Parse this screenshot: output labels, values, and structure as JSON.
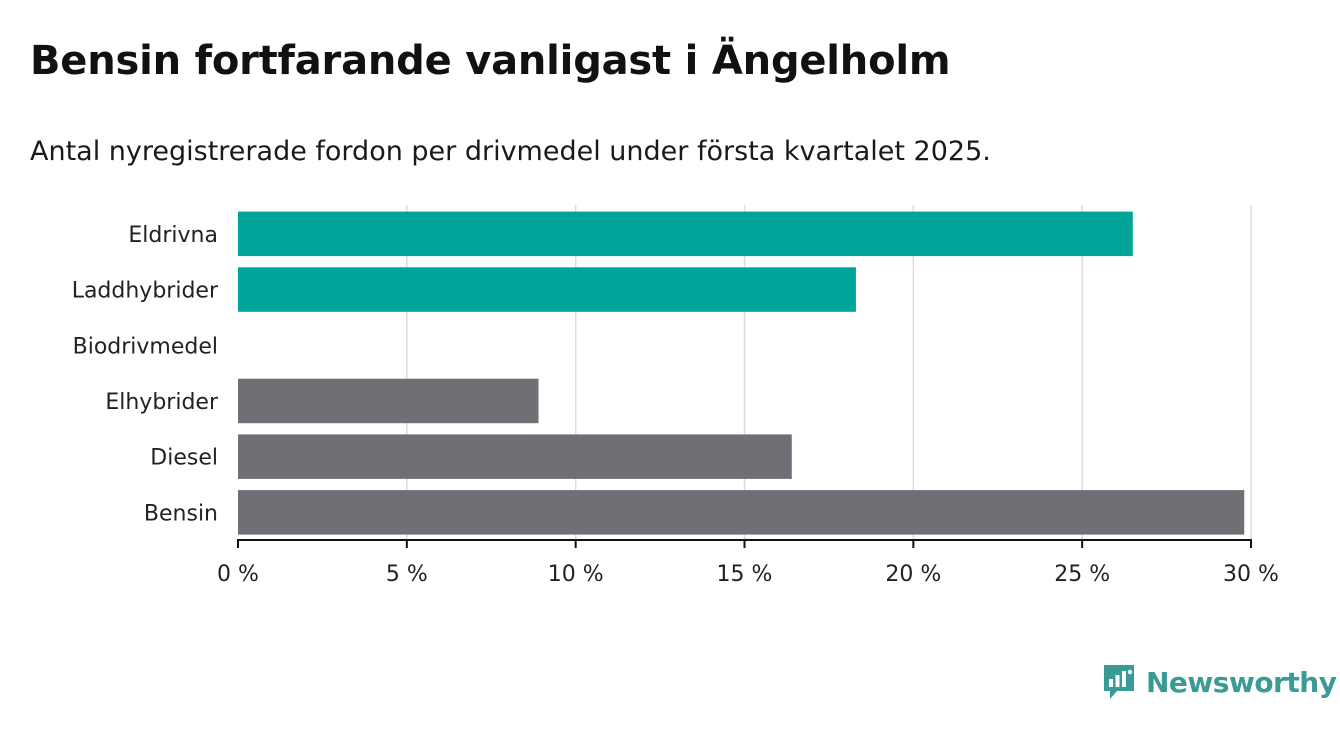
{
  "header": {
    "title": "Bensin fortfarande vanligast i Ängelholm",
    "subtitle": "Antal nyregistrerade fordon per drivmedel under första kvartalet 2025."
  },
  "colors": {
    "highlight": "#00a59a",
    "base": "#706f76",
    "grid": "#dcdcdc",
    "brand": "#3a9a95"
  },
  "brand": {
    "name": "Newsworthy",
    "icon": "bar-chart-speech-bubble-icon"
  },
  "chart_data": {
    "type": "bar",
    "orientation": "horizontal",
    "categories": [
      "Eldrivna",
      "Laddhybrider",
      "Biodrivmedel",
      "Elhybrider",
      "Diesel",
      "Bensin"
    ],
    "values": [
      26.5,
      18.3,
      0,
      8.9,
      16.4,
      29.8
    ],
    "bar_colors": [
      "#00a59a",
      "#00a59a",
      "#706f76",
      "#706f76",
      "#706f76",
      "#706f76"
    ],
    "xlim": [
      0,
      30
    ],
    "x_ticks": [
      0,
      5,
      10,
      15,
      20,
      25,
      30
    ],
    "x_tick_labels": [
      "0 %",
      "5 %",
      "10 %",
      "15 %",
      "20 %",
      "25 %",
      "30 %"
    ],
    "grid": true,
    "legend": false
  }
}
